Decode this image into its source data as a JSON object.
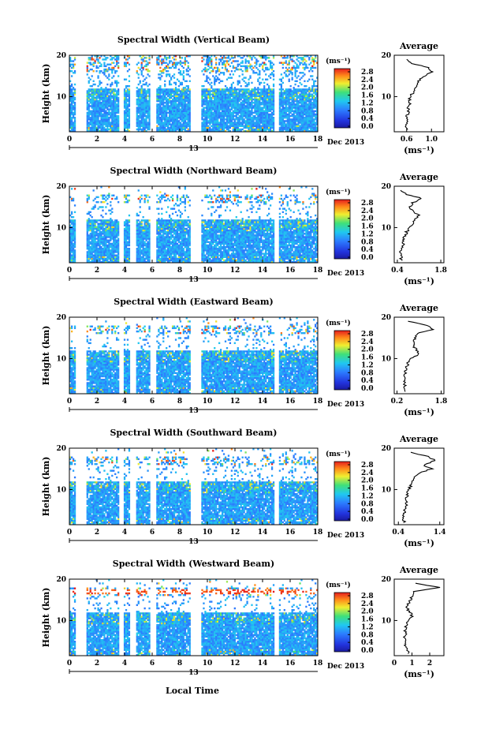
{
  "figure": {
    "xlabel": "Local Time",
    "units_label": "(ms⁻¹)"
  },
  "chart_data": [
    {
      "type": "heatmap",
      "title": "Spectral Width (Vertical Beam)",
      "ylabel": "Height (km)",
      "xlabel": "Local Time",
      "x_ticks": [
        "0",
        "2",
        "4",
        "6",
        "8",
        "10",
        "12",
        "14",
        "16",
        "18"
      ],
      "y_ticks": [
        "20",
        "10"
      ],
      "xlim": [
        0,
        18
      ],
      "ylim": [
        1.5,
        20
      ],
      "date_day": "13",
      "date_label": "Dec 2013",
      "colorbar": {
        "label": "(ms⁻¹)",
        "ticks": [
          "2.8",
          "2.4",
          "2.0",
          "1.6",
          "1.2",
          "0.8",
          "0.4",
          "0.0"
        ],
        "range": [
          0,
          2.8
        ]
      },
      "data_gaps": [
        [
          0.4,
          1.2
        ],
        [
          3.6,
          3.9
        ],
        [
          4.4,
          4.8
        ],
        [
          5.8,
          6.3
        ],
        [
          8.8,
          9.6
        ],
        [
          14.8,
          15.2
        ]
      ],
      "average_profile": {
        "title": "Average",
        "xlabel": "(ms⁻¹)",
        "x_ticks": [
          "0.6",
          "1.0"
        ],
        "xlim": [
          0.4,
          1.2
        ],
        "y_ticks": [
          "20",
          "10"
        ],
        "heights": [
          2,
          3,
          4,
          5,
          6,
          7,
          8,
          9,
          10,
          11,
          12,
          13,
          14,
          15,
          16,
          17,
          18,
          19
        ],
        "values": [
          0.6,
          0.6,
          0.62,
          0.6,
          0.63,
          0.62,
          0.65,
          0.64,
          0.66,
          0.7,
          0.72,
          0.78,
          0.8,
          0.9,
          1.0,
          0.95,
          0.7,
          0.6
        ]
      }
    },
    {
      "type": "heatmap",
      "title": "Spectral Width (Northward Beam)",
      "ylabel": "Height (km)",
      "xlabel": "Local Time",
      "x_ticks": [
        "0",
        "2",
        "4",
        "6",
        "8",
        "10",
        "12",
        "14",
        "16",
        "18"
      ],
      "y_ticks": [
        "20",
        "10"
      ],
      "xlim": [
        0,
        18
      ],
      "ylim": [
        1.5,
        20
      ],
      "date_day": "13",
      "date_label": "Dec 2013",
      "colorbar": {
        "label": "(ms⁻¹)",
        "ticks": [
          "2.8",
          "2.4",
          "2.0",
          "1.6",
          "1.2",
          "0.8",
          "0.4",
          "0.0"
        ],
        "range": [
          0,
          2.8
        ]
      },
      "data_gaps": [
        [
          0.4,
          1.2
        ],
        [
          3.6,
          3.9
        ],
        [
          4.4,
          4.8
        ],
        [
          5.8,
          6.3
        ],
        [
          8.8,
          9.6
        ],
        [
          14.8,
          15.2
        ]
      ],
      "average_profile": {
        "title": "Average",
        "xlabel": "(ms⁻¹)",
        "x_ticks": [
          "0.4",
          "1.8"
        ],
        "xlim": [
          0.3,
          1.9
        ],
        "y_ticks": [
          "20",
          "10"
        ],
        "heights": [
          2,
          3,
          4,
          5,
          6,
          7,
          8,
          9,
          10,
          11,
          12,
          13,
          14,
          15,
          16,
          17,
          18,
          19
        ],
        "values": [
          0.5,
          0.55,
          0.5,
          0.55,
          0.6,
          0.6,
          0.65,
          0.7,
          0.8,
          0.9,
          1.0,
          1.1,
          0.9,
          0.8,
          0.9,
          1.2,
          0.7,
          0.5
        ]
      }
    },
    {
      "type": "heatmap",
      "title": "Spectral Width (Eastward Beam)",
      "ylabel": "Height (km)",
      "xlabel": "Local Time",
      "x_ticks": [
        "0",
        "2",
        "4",
        "6",
        "8",
        "10",
        "12",
        "14",
        "16",
        "18"
      ],
      "y_ticks": [
        "20",
        "10"
      ],
      "xlim": [
        0,
        18
      ],
      "ylim": [
        1.5,
        20
      ],
      "date_day": "13",
      "date_label": "Dec 2013",
      "colorbar": {
        "label": "(ms⁻¹)",
        "ticks": [
          "2.8",
          "2.4",
          "2.0",
          "1.6",
          "1.2",
          "0.8",
          "0.4",
          "0.0"
        ],
        "range": [
          0,
          2.8
        ]
      },
      "data_gaps": [
        [
          0.4,
          1.2
        ],
        [
          3.6,
          3.9
        ],
        [
          4.4,
          4.8
        ],
        [
          5.8,
          6.3
        ],
        [
          8.8,
          9.6
        ],
        [
          14.8,
          15.2
        ]
      ],
      "average_profile": {
        "title": "Average",
        "xlabel": "(ms⁻¹)",
        "x_ticks": [
          "0.2",
          "1.8"
        ],
        "xlim": [
          0.1,
          1.9
        ],
        "y_ticks": [
          "20",
          "10"
        ],
        "heights": [
          2,
          3,
          4,
          5,
          6,
          7,
          8,
          9,
          10,
          11,
          12,
          13,
          14,
          15,
          16,
          17,
          18,
          19
        ],
        "values": [
          0.5,
          0.45,
          0.5,
          0.48,
          0.5,
          0.52,
          0.55,
          0.6,
          0.7,
          1.0,
          0.9,
          0.8,
          0.8,
          0.85,
          0.9,
          1.5,
          1.3,
          0.6
        ]
      }
    },
    {
      "type": "heatmap",
      "title": "Spectral Width (Southward Beam)",
      "ylabel": "Height (km)",
      "xlabel": "Local Time",
      "x_ticks": [
        "0",
        "2",
        "4",
        "6",
        "8",
        "10",
        "12",
        "14",
        "16",
        "18"
      ],
      "y_ticks": [
        "20",
        "10"
      ],
      "xlim": [
        0,
        18
      ],
      "ylim": [
        1.5,
        20
      ],
      "date_day": "13",
      "date_label": "Dec 2013",
      "colorbar": {
        "label": "(ms⁻¹)",
        "ticks": [
          "2.8",
          "2.4",
          "2.0",
          "1.6",
          "1.2",
          "0.8",
          "0.4",
          "0.0"
        ],
        "range": [
          0,
          2.8
        ]
      },
      "data_gaps": [
        [
          0.4,
          1.2
        ],
        [
          3.6,
          3.9
        ],
        [
          4.4,
          4.8
        ],
        [
          5.8,
          6.3
        ],
        [
          8.8,
          9.6
        ],
        [
          14.8,
          15.2
        ]
      ],
      "average_profile": {
        "title": "Average",
        "xlabel": "(ms⁻¹)",
        "x_ticks": [
          "0.4",
          "1.4"
        ],
        "xlim": [
          0.3,
          1.5
        ],
        "y_ticks": [
          "20",
          "10"
        ],
        "heights": [
          2,
          3,
          4,
          5,
          6,
          7,
          8,
          9,
          10,
          11,
          12,
          13,
          14,
          15,
          16,
          17,
          18,
          19
        ],
        "values": [
          0.55,
          0.5,
          0.55,
          0.55,
          0.58,
          0.6,
          0.6,
          0.62,
          0.65,
          0.7,
          0.75,
          0.8,
          0.9,
          1.2,
          1.0,
          1.3,
          1.1,
          0.7
        ]
      }
    },
    {
      "type": "heatmap",
      "title": "Spectral Width (Westward Beam)",
      "ylabel": "Height (km)",
      "xlabel": "Local Time",
      "x_ticks": [
        "0",
        "2",
        "4",
        "6",
        "8",
        "10",
        "12",
        "14",
        "16",
        "18"
      ],
      "y_ticks": [
        "20",
        "10"
      ],
      "xlim": [
        0,
        18
      ],
      "ylim": [
        1.5,
        20
      ],
      "date_day": "13",
      "date_label": "Dec 2013",
      "colorbar": {
        "label": "(ms⁻¹)",
        "ticks": [
          "2.8",
          "2.4",
          "2.0",
          "1.6",
          "1.2",
          "0.8",
          "0.4",
          "0.0"
        ],
        "range": [
          0,
          2.8
        ]
      },
      "data_gaps": [
        [
          0.4,
          1.2
        ],
        [
          3.6,
          3.9
        ],
        [
          4.4,
          4.8
        ],
        [
          5.8,
          6.3
        ],
        [
          8.8,
          9.6
        ],
        [
          14.8,
          15.2
        ]
      ],
      "average_profile": {
        "title": "Average",
        "xlabel": "(ms⁻¹)",
        "x_ticks": [
          "0",
          "1",
          "2"
        ],
        "xlim": [
          0,
          2.8
        ],
        "y_ticks": [
          "20",
          "10"
        ],
        "heights": [
          2,
          3,
          4,
          5,
          6,
          7,
          8,
          9,
          10,
          11,
          12,
          13,
          14,
          15,
          16,
          17,
          18,
          19
        ],
        "values": [
          0.8,
          0.7,
          0.6,
          0.6,
          0.6,
          0.65,
          0.6,
          0.7,
          0.8,
          1.0,
          0.9,
          0.7,
          0.8,
          0.9,
          1.0,
          1.1,
          2.6,
          1.2
        ]
      }
    }
  ]
}
